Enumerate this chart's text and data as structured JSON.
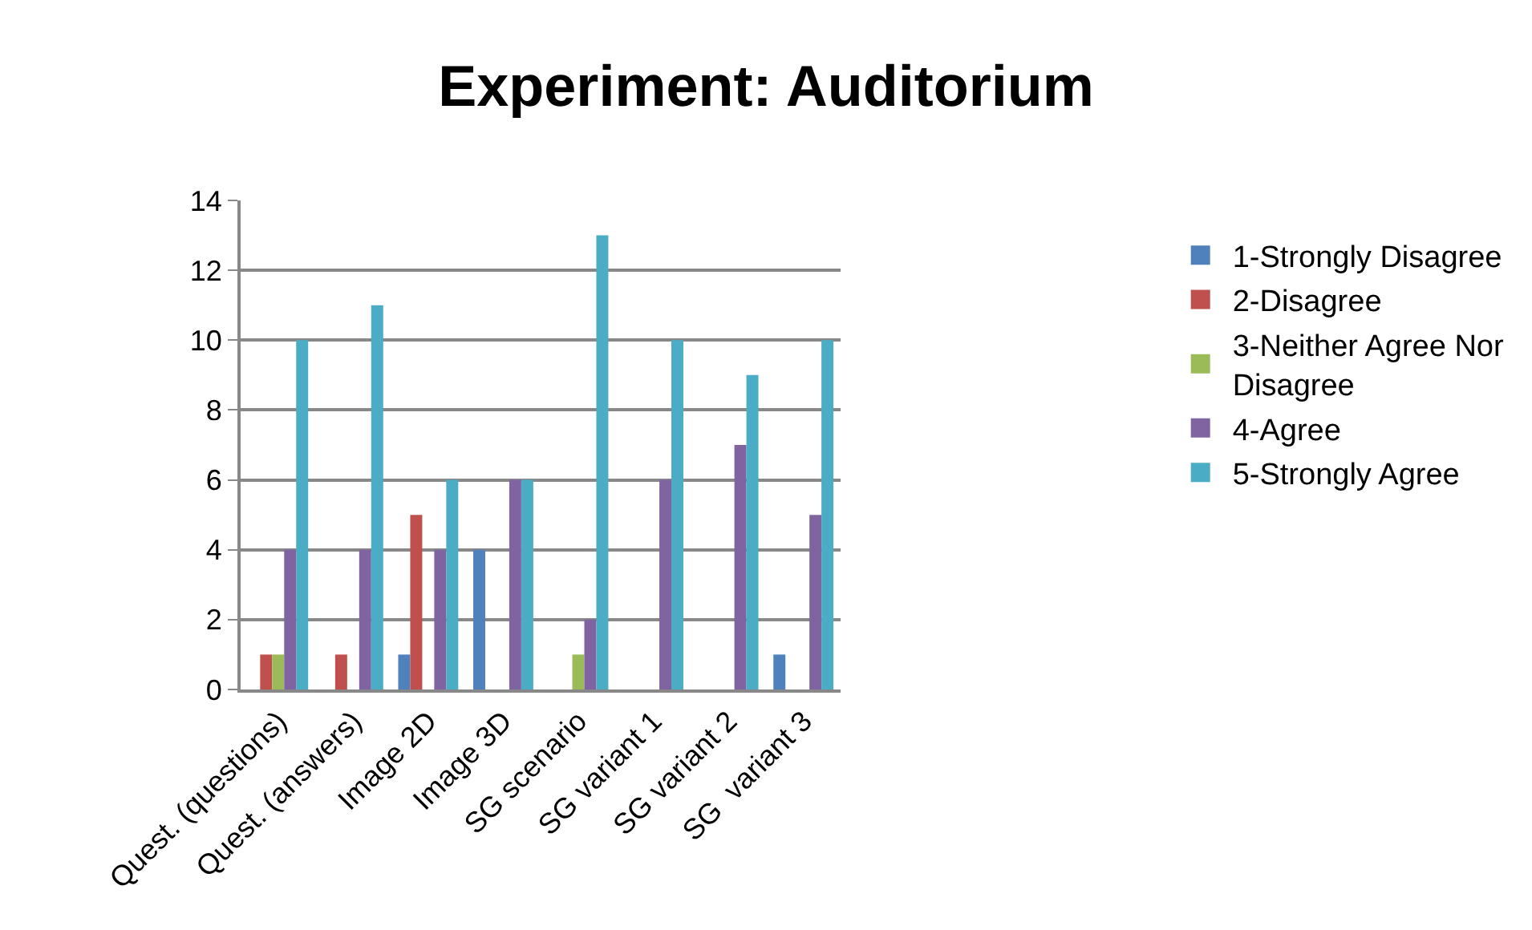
{
  "chart_data": {
    "type": "bar",
    "title": "Experiment: Auditorium",
    "categories": [
      "Quest. (questions)",
      "Quest. (answers)",
      "Image 2D",
      "Image 3D",
      "SG scenario",
      "SG variant 1",
      "SG variant 2",
      "SG  variant 3"
    ],
    "series": [
      {
        "name": "1-Strongly Disagree",
        "color": "#4f81bd",
        "values": [
          0,
          0,
          1,
          4,
          0,
          0,
          0,
          1
        ]
      },
      {
        "name": "2-Disagree",
        "color": "#c0504d",
        "values": [
          1,
          1,
          5,
          0,
          0,
          0,
          0,
          0
        ]
      },
      {
        "name": "3-Neither Agree Nor Disagree",
        "color": "#9bbb59",
        "values": [
          1,
          0,
          0,
          0,
          1,
          0,
          0,
          0
        ]
      },
      {
        "name": "4-Agree",
        "color": "#8064a2",
        "values": [
          4,
          4,
          4,
          6,
          2,
          6,
          7,
          5
        ]
      },
      {
        "name": "5-Strongly Agree",
        "color": "#4bacc6",
        "values": [
          10,
          11,
          6,
          6,
          13,
          10,
          9,
          10
        ]
      }
    ],
    "ylim": [
      0,
      14
    ],
    "yticks": [
      0,
      2,
      4,
      6,
      8,
      10,
      12,
      14
    ],
    "grid": "y",
    "legend": "right"
  }
}
